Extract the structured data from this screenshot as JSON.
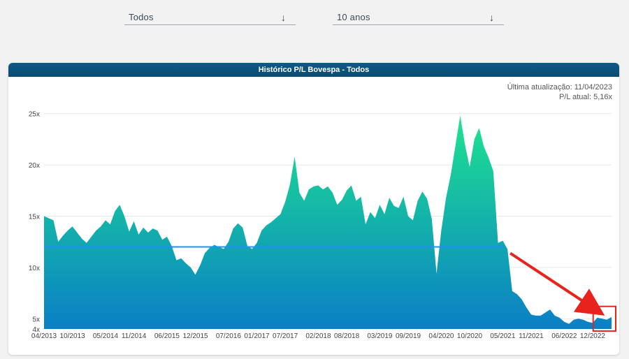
{
  "filters": {
    "category": "Todos",
    "period": "10 anos",
    "arrow_icon": "arrow-down-icon"
  },
  "card": {
    "title": "Histórico P/L Bovespa - Todos",
    "updated_label": "Última atualização: 11/04/2023",
    "current_label": "P/L atual: 5,16x"
  },
  "colors": {
    "header": "#0a4f78",
    "area_top": "#1ee38f",
    "area_bottom": "#0a7fc6",
    "average_line": "#1e90ff",
    "annotation": "#e8231e"
  },
  "chart_data": {
    "type": "area",
    "title": "",
    "xlabel": "",
    "ylabel": "",
    "ylim": [
      4,
      26
    ],
    "yticks": [
      {
        "value": 25,
        "label": "25x"
      },
      {
        "value": 20,
        "label": "20x"
      },
      {
        "value": 15,
        "label": "15x"
      },
      {
        "value": 10,
        "label": "10x"
      },
      {
        "value": 5,
        "label": "5x"
      },
      {
        "value": 4,
        "label": "4x"
      }
    ],
    "xticks": [
      "04/2013",
      "10/2013",
      "05/2014",
      "11/2014",
      "06/2015",
      "12/2015",
      "07/2016",
      "01/2017",
      "07/2017",
      "02/2018",
      "08/2018",
      "03/2019",
      "09/2019",
      "04/2020",
      "10/2020",
      "05/2021",
      "11/2021",
      "06/2022",
      "12/2022"
    ],
    "series": [
      {
        "values": [
          [
            "04/2013",
            15.0
          ],
          [
            "06/2013",
            14.6
          ],
          [
            "07/2013",
            12.5
          ],
          [
            "08/2013",
            13.1
          ],
          [
            "09/2013",
            13.6
          ],
          [
            "10/2013",
            14.0
          ],
          [
            "11/2013",
            13.4
          ],
          [
            "12/2013",
            12.8
          ],
          [
            "01/2014",
            12.4
          ],
          [
            "02/2014",
            13.0
          ],
          [
            "03/2014",
            13.6
          ],
          [
            "04/2014",
            14.0
          ],
          [
            "05/2014",
            14.6
          ],
          [
            "06/2014",
            14.2
          ],
          [
            "07/2014",
            15.5
          ],
          [
            "08/2014",
            16.1
          ],
          [
            "09/2014",
            15.0
          ],
          [
            "10/2014",
            13.5
          ],
          [
            "11/2014",
            14.5
          ],
          [
            "12/2014",
            13.2
          ],
          [
            "01/2015",
            13.9
          ],
          [
            "02/2015",
            13.4
          ],
          [
            "03/2015",
            13.8
          ],
          [
            "04/2015",
            13.6
          ],
          [
            "05/2015",
            12.7
          ],
          [
            "06/2015",
            13.0
          ],
          [
            "07/2015",
            12.1
          ],
          [
            "08/2015",
            10.7
          ],
          [
            "09/2015",
            10.9
          ],
          [
            "10/2015",
            10.4
          ],
          [
            "11/2015",
            10.0
          ],
          [
            "12/2015",
            9.3
          ],
          [
            "01/2016",
            10.2
          ],
          [
            "02/2016",
            11.4
          ],
          [
            "03/2016",
            11.9
          ],
          [
            "04/2016",
            12.2
          ],
          [
            "05/2016",
            12.0
          ],
          [
            "06/2016",
            11.8
          ],
          [
            "07/2016",
            12.5
          ],
          [
            "08/2016",
            13.8
          ],
          [
            "09/2016",
            14.3
          ],
          [
            "10/2016",
            13.9
          ],
          [
            "11/2016",
            12.1
          ],
          [
            "12/2016",
            11.8
          ],
          [
            "01/2017",
            12.4
          ],
          [
            "02/2017",
            13.6
          ],
          [
            "03/2017",
            14.1
          ],
          [
            "04/2017",
            14.4
          ],
          [
            "05/2017",
            14.8
          ],
          [
            "06/2017",
            15.2
          ],
          [
            "07/2017",
            16.4
          ],
          [
            "08/2017",
            18.1
          ],
          [
            "09/2017",
            20.8
          ],
          [
            "10/2017",
            17.3
          ],
          [
            "11/2017",
            16.5
          ],
          [
            "12/2017",
            17.6
          ],
          [
            "01/2018",
            17.9
          ],
          [
            "02/2018",
            18.0
          ],
          [
            "03/2018",
            17.6
          ],
          [
            "04/2018",
            17.9
          ],
          [
            "05/2018",
            17.3
          ],
          [
            "06/2018",
            16.1
          ],
          [
            "07/2018",
            16.6
          ],
          [
            "08/2018",
            17.5
          ],
          [
            "09/2018",
            18.0
          ],
          [
            "10/2018",
            16.5
          ],
          [
            "11/2018",
            16.9
          ],
          [
            "12/2018",
            14.2
          ],
          [
            "01/2019",
            15.4
          ],
          [
            "02/2019",
            14.8
          ],
          [
            "03/2019",
            16.1
          ],
          [
            "04/2019",
            15.2
          ],
          [
            "05/2019",
            16.8
          ],
          [
            "06/2019",
            16.0
          ],
          [
            "07/2019",
            15.8
          ],
          [
            "08/2019",
            16.9
          ],
          [
            "09/2019",
            15.0
          ],
          [
            "10/2019",
            14.6
          ],
          [
            "11/2019",
            16.5
          ],
          [
            "12/2019",
            17.4
          ],
          [
            "01/2020",
            16.7
          ],
          [
            "02/2020",
            14.7
          ],
          [
            "03/2020",
            9.4
          ],
          [
            "04/2020",
            13.6
          ],
          [
            "05/2020",
            16.8
          ],
          [
            "06/2020",
            19.0
          ],
          [
            "07/2020",
            21.9
          ],
          [
            "08/2020",
            24.8
          ],
          [
            "09/2020",
            22.0
          ],
          [
            "10/2020",
            19.8
          ],
          [
            "11/2020",
            22.5
          ],
          [
            "12/2020",
            23.6
          ],
          [
            "01/2021",
            21.8
          ],
          [
            "02/2021",
            20.7
          ],
          [
            "03/2021",
            19.4
          ],
          [
            "04/2021",
            12.4
          ],
          [
            "05/2021",
            12.6
          ],
          [
            "06/2021",
            11.8
          ],
          [
            "07/2021",
            7.7
          ],
          [
            "08/2021",
            7.4
          ],
          [
            "09/2021",
            6.9
          ],
          [
            "10/2021",
            6.1
          ],
          [
            "11/2021",
            5.4
          ],
          [
            "12/2021",
            5.3
          ],
          [
            "01/2022",
            5.3
          ],
          [
            "02/2022",
            5.6
          ],
          [
            "03/2022",
            5.9
          ],
          [
            "04/2022",
            5.3
          ],
          [
            "05/2022",
            5.1
          ],
          [
            "06/2022",
            4.7
          ],
          [
            "07/2022",
            4.5
          ],
          [
            "08/2022",
            4.9
          ],
          [
            "09/2022",
            5.0
          ],
          [
            "10/2022",
            4.9
          ],
          [
            "11/2022",
            4.7
          ],
          [
            "12/2022",
            4.6
          ],
          [
            "01/2023",
            5.1
          ],
          [
            "02/2023",
            5.0
          ],
          [
            "03/2023",
            4.9
          ],
          [
            "04/2023",
            5.16
          ]
        ]
      }
    ],
    "average": {
      "start": "04/2013",
      "end": "05/2021",
      "value": 12.0
    },
    "grid": true,
    "annotations": [
      {
        "type": "arrow",
        "from": "06/2021",
        "to": "12/2022"
      },
      {
        "type": "box",
        "from": "01/2023",
        "to": "04/2023"
      }
    ]
  }
}
